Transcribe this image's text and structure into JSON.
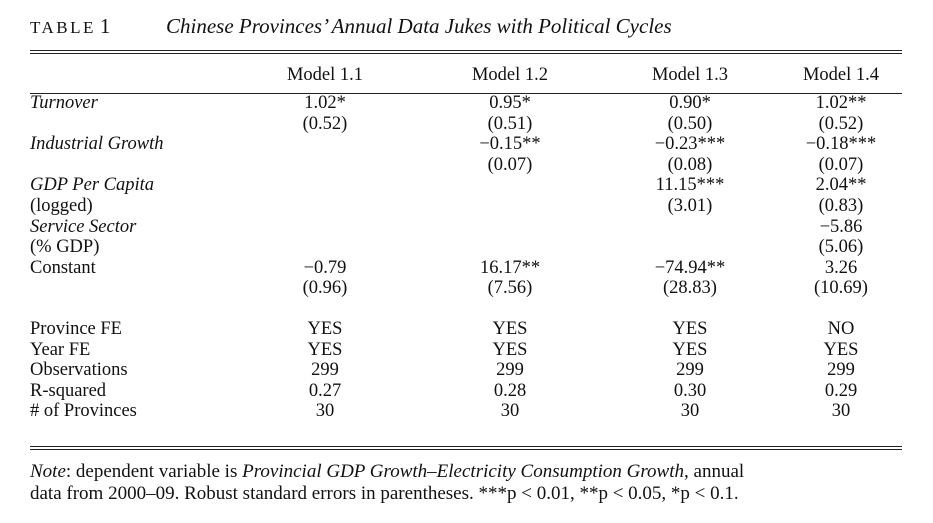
{
  "caption": {
    "label": "TABLE",
    "number": "1",
    "title": "Chinese Provinces’ Annual Data Jukes with Political Cycles"
  },
  "columns": [
    "Model 1.1",
    "Model 1.2",
    "Model 1.3",
    "Model 1.4"
  ],
  "rows": [
    {
      "label": "Turnover",
      "italic": true,
      "values": [
        "1.02*",
        "0.95*",
        "0.90*",
        "1.02**"
      ]
    },
    {
      "label": "",
      "italic": false,
      "values": [
        "(0.52)",
        "(0.51)",
        "(0.50)",
        "(0.52)"
      ]
    },
    {
      "label": "Industrial Growth",
      "italic": true,
      "values": [
        "",
        "−0.15**",
        "−0.23***",
        "−0.18***"
      ]
    },
    {
      "label": "",
      "italic": false,
      "values": [
        "",
        "(0.07)",
        "(0.08)",
        "(0.07)"
      ]
    },
    {
      "label": "GDP Per Capita",
      "italic": true,
      "values": [
        "",
        "",
        "11.15***",
        "2.04**"
      ]
    },
    {
      "label": "(logged)",
      "italic": false,
      "values": [
        "",
        "",
        "(3.01)",
        "(0.83)"
      ]
    },
    {
      "label": "Service Sector",
      "italic": true,
      "values": [
        "",
        "",
        "",
        "−5.86"
      ]
    },
    {
      "label": "(% GDP)",
      "italic": false,
      "values": [
        "",
        "",
        "",
        "(5.06)"
      ]
    },
    {
      "label": "Constant",
      "italic": false,
      "values": [
        "−0.79",
        "16.17**",
        "−74.94**",
        "3.26"
      ]
    },
    {
      "label": "",
      "italic": false,
      "values": [
        "(0.96)",
        "(7.56)",
        "(28.83)",
        "(10.69)"
      ]
    }
  ],
  "footer_rows": [
    {
      "label": "Province FE",
      "values": [
        "YES",
        "YES",
        "YES",
        "NO"
      ]
    },
    {
      "label": "Year FE",
      "values": [
        "YES",
        "YES",
        "YES",
        "YES"
      ]
    },
    {
      "label": "Observations",
      "values": [
        "299",
        "299",
        "299",
        "299"
      ]
    },
    {
      "label": "R-squared",
      "values": [
        "0.27",
        "0.28",
        "0.30",
        "0.29"
      ]
    },
    {
      "label": "# of Provinces",
      "values": [
        "30",
        "30",
        "30",
        "30"
      ]
    }
  ],
  "note": {
    "prefix": "Note",
    "sep": ": dependent variable is ",
    "depvar": "Provincial GDP Growth–Electricity Consumption Growth",
    "tail": ", annual",
    "line2": "data from 2000–09. Robust standard errors in parentheses. ***p < 0.01, **p < 0.05, *p < 0.1."
  }
}
